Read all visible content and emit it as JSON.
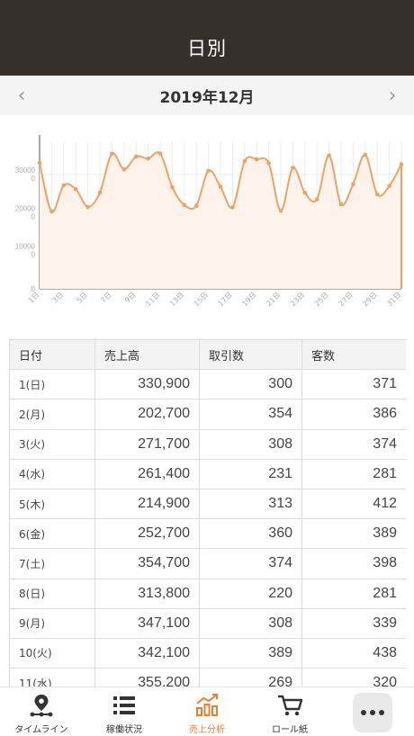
{
  "header": {
    "title": "日別"
  },
  "month_nav": {
    "prev_label": "‹",
    "next_label": "›",
    "month": "2019年12月"
  },
  "chart_data": {
    "type": "line",
    "x": [
      "1日",
      "2日",
      "3日",
      "4日",
      "5日",
      "6日",
      "7日",
      "8日",
      "9日",
      "10日",
      "11日",
      "12日",
      "13日",
      "14日",
      "15日",
      "16日",
      "17日",
      "18日",
      "19日",
      "20日",
      "21日",
      "22日",
      "23日",
      "24日",
      "25日",
      "26日",
      "27日",
      "28日",
      "29日",
      "30日",
      "31日"
    ],
    "x_tick_labels": [
      "1日",
      "3日",
      "5日",
      "7日",
      "9日",
      "11日",
      "13日",
      "15日",
      "17日",
      "19日",
      "21日",
      "23日",
      "25日",
      "27日",
      "29日",
      "31日"
    ],
    "y_tick_labels": [
      "30000\n0",
      "20000\n0",
      "10000\n0",
      "0"
    ],
    "y_ticks": [
      300000,
      200000,
      100000,
      0
    ],
    "ylim": [
      0,
      385000
    ],
    "color": "#f0a261",
    "fill_color": "#fdf3ea",
    "grid": true,
    "series": [
      {
        "values": [
          330900,
          202700,
          271700,
          261400,
          214900,
          252700,
          354700,
          313800,
          347100,
          342100,
          355200,
          267000,
          220000,
          218000,
          310000,
          268000,
          214000,
          335000,
          340000,
          330000,
          205000,
          318000,
          252000,
          235000,
          350000,
          222000,
          275000,
          352000,
          248000,
          270000,
          327000
        ]
      }
    ]
  },
  "table": {
    "headers": [
      "日付",
      "売上高",
      "取引数",
      "客数"
    ],
    "rows": [
      [
        "1(日)",
        "330,900",
        "300",
        "371"
      ],
      [
        "2(月)",
        "202,700",
        "354",
        "386"
      ],
      [
        "3(火)",
        "271,700",
        "308",
        "374"
      ],
      [
        "4(水)",
        "261,400",
        "231",
        "281"
      ],
      [
        "5(木)",
        "214,900",
        "313",
        "412"
      ],
      [
        "6(金)",
        "252,700",
        "360",
        "389"
      ],
      [
        "7(土)",
        "354,700",
        "374",
        "398"
      ],
      [
        "8(日)",
        "313,800",
        "220",
        "281"
      ],
      [
        "9(月)",
        "347,100",
        "308",
        "339"
      ],
      [
        "10(火)",
        "342,100",
        "389",
        "438"
      ],
      [
        "11(水)",
        "355,200",
        "269",
        "320"
      ]
    ]
  },
  "tabbar": {
    "items": [
      {
        "label": "タイムライン",
        "icon": "location-pin-icon",
        "active": false
      },
      {
        "label": "稼働状況",
        "icon": "list-icon",
        "active": false
      },
      {
        "label": "売上分析",
        "icon": "bar-chart-icon",
        "active": true
      },
      {
        "label": "ロール紙",
        "icon": "cart-icon",
        "active": false
      }
    ],
    "more_icon": "more-dots-icon"
  },
  "colors": {
    "header_bg": "#36302d",
    "accent": "#ee7d2f",
    "line": "#f0a261"
  }
}
